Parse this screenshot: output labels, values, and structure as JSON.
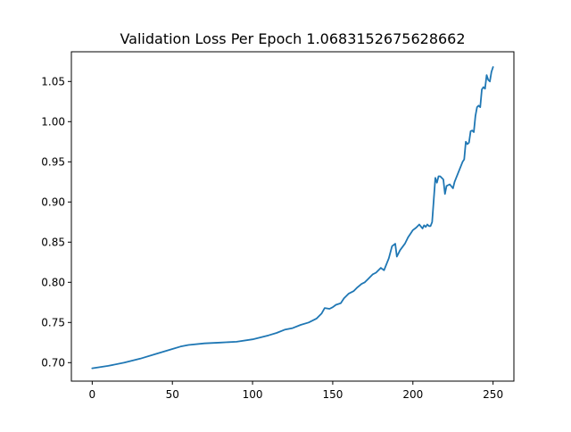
{
  "chart_data": {
    "type": "line",
    "title": "Validation Loss Per Epoch 1.0683152675628662",
    "xlabel": "",
    "ylabel": "",
    "xlim": [
      -13,
      263
    ],
    "ylim": [
      0.677,
      1.087
    ],
    "x_ticks": [
      0,
      50,
      100,
      150,
      200,
      250
    ],
    "x_tick_labels": [
      "0",
      "50",
      "100",
      "150",
      "200",
      "250"
    ],
    "y_ticks": [
      0.7,
      0.75,
      0.8,
      0.85,
      0.9,
      0.95,
      1.0,
      1.05
    ],
    "y_tick_labels": [
      "0.70",
      "0.75",
      "0.80",
      "0.85",
      "0.90",
      "0.95",
      "1.00",
      "1.05"
    ],
    "grid": false,
    "legend": "none",
    "series": [
      {
        "color": "#1f77b4",
        "x": [
          0,
          10,
          20,
          30,
          40,
          50,
          55,
          60,
          70,
          80,
          90,
          100,
          110,
          115,
          120,
          125,
          130,
          135,
          140,
          143,
          145,
          148,
          150,
          152,
          155,
          157,
          160,
          163,
          165,
          168,
          170,
          172,
          175,
          177,
          180,
          182,
          185,
          187,
          189,
          190,
          192,
          195,
          197,
          199,
          200,
          202,
          204,
          206,
          207,
          208,
          209,
          210,
          211,
          212,
          214,
          215,
          216,
          217,
          218,
          219,
          220,
          221,
          223,
          225,
          226,
          227,
          228,
          229,
          230,
          231,
          232,
          233,
          234,
          235,
          236,
          237,
          238,
          239,
          240,
          241,
          242,
          243,
          244,
          245,
          246,
          247,
          248,
          249,
          250
        ],
        "y": [
          0.693,
          0.696,
          0.7,
          0.705,
          0.711,
          0.717,
          0.72,
          0.722,
          0.724,
          0.725,
          0.726,
          0.729,
          0.734,
          0.737,
          0.741,
          0.743,
          0.747,
          0.75,
          0.755,
          0.761,
          0.768,
          0.767,
          0.769,
          0.772,
          0.774,
          0.78,
          0.786,
          0.789,
          0.793,
          0.798,
          0.8,
          0.804,
          0.81,
          0.812,
          0.818,
          0.815,
          0.83,
          0.845,
          0.848,
          0.832,
          0.84,
          0.848,
          0.856,
          0.862,
          0.865,
          0.868,
          0.872,
          0.867,
          0.871,
          0.869,
          0.872,
          0.87,
          0.87,
          0.875,
          0.93,
          0.924,
          0.932,
          0.932,
          0.93,
          0.928,
          0.91,
          0.92,
          0.922,
          0.917,
          0.925,
          0.93,
          0.935,
          0.94,
          0.945,
          0.95,
          0.953,
          0.975,
          0.972,
          0.974,
          0.988,
          0.989,
          0.987,
          1.007,
          1.018,
          1.02,
          1.018,
          1.04,
          1.043,
          1.041,
          1.058,
          1.052,
          1.05,
          1.062,
          1.068
        ]
      }
    ]
  }
}
